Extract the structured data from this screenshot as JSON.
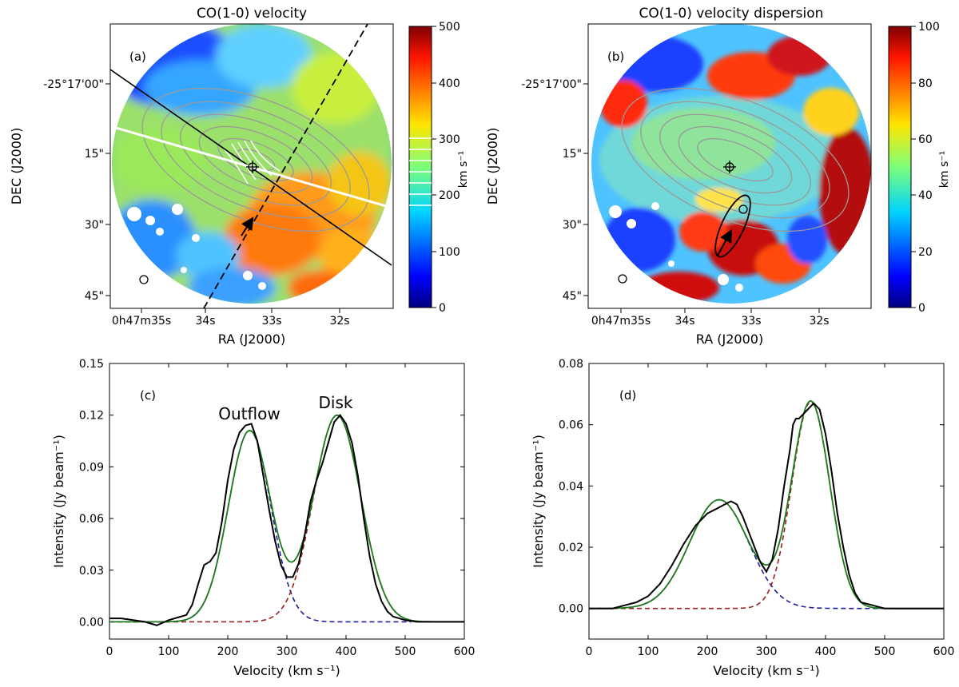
{
  "panels": {
    "a": {
      "title": "CO(1-0) velocity",
      "label": "(a)",
      "xlabel": "RA (J2000)",
      "ylabel": "DEC (J2000)",
      "ra_ticks": [
        "0h47m35s",
        "34s",
        "33s",
        "32s"
      ],
      "dec_ticks": [
        "-25°17'00\"",
        "15\"",
        "30\"",
        "45\""
      ],
      "colorbar": {
        "min": 0,
        "max": 500,
        "ticks": [
          "0",
          "100",
          "200",
          "300",
          "400",
          "500"
        ],
        "unit": "km s⁻¹",
        "colormap": "jet"
      }
    },
    "b": {
      "title": "CO(1-0) velocity dispersion",
      "label": "(b)",
      "xlabel": "RA (J2000)",
      "ylabel": "DEC (J2000)",
      "ra_ticks": [
        "0h47m35s",
        "34s",
        "33s",
        "32s"
      ],
      "dec_ticks": [
        "-25°17'00\"",
        "15\"",
        "30\"",
        "45\""
      ],
      "colorbar": {
        "min": 0,
        "max": 100,
        "ticks": [
          "0",
          "20",
          "40",
          "60",
          "80",
          "100"
        ],
        "unit": "km s⁻¹",
        "colormap": "jet"
      }
    }
  },
  "chart_data": [
    {
      "type": "line",
      "label": "(c)",
      "annotations": [
        "Outflow",
        "Disk"
      ],
      "xlabel": "Velocity (km s⁻¹)",
      "ylabel": "Intensity (Jy beam⁻¹)",
      "xlim": [
        0,
        600
      ],
      "ylim": [
        -0.01,
        0.15
      ],
      "xticks": [
        0,
        100,
        200,
        300,
        400,
        500,
        600
      ],
      "yticks": [
        0.0,
        0.03,
        0.06,
        0.09,
        0.12,
        0.15
      ],
      "ytick_labels": [
        "0.00",
        "0.03",
        "0.06",
        "0.09",
        "0.12",
        "0.15"
      ],
      "gaussians": [
        {
          "amp": 0.111,
          "center": 237,
          "sigma": 36,
          "color": "#1f1f9a",
          "dash": true
        },
        {
          "amp": 0.12,
          "center": 385,
          "sigma": 40,
          "color": "#9a1f1f",
          "dash": true
        }
      ],
      "observed": {
        "x": [
          0,
          20,
          40,
          60,
          80,
          100,
          120,
          130,
          140,
          150,
          160,
          170,
          180,
          190,
          200,
          210,
          220,
          230,
          240,
          250,
          260,
          270,
          280,
          290,
          300,
          310,
          320,
          330,
          340,
          350,
          360,
          370,
          380,
          390,
          400,
          410,
          420,
          430,
          440,
          450,
          460,
          470,
          480,
          490,
          500,
          520,
          540,
          560,
          580,
          600
        ],
        "y": [
          0.002,
          0.002,
          0.001,
          0.0,
          -0.002,
          0.001,
          0.003,
          0.004,
          0.01,
          0.022,
          0.033,
          0.035,
          0.04,
          0.058,
          0.082,
          0.1,
          0.11,
          0.114,
          0.115,
          0.105,
          0.085,
          0.065,
          0.047,
          0.033,
          0.026,
          0.026,
          0.034,
          0.05,
          0.07,
          0.082,
          0.092,
          0.104,
          0.116,
          0.12,
          0.115,
          0.104,
          0.085,
          0.06,
          0.038,
          0.022,
          0.012,
          0.006,
          0.003,
          0.002,
          0.001,
          0.0,
          0.0,
          0.0,
          0.0,
          0.0
        ]
      }
    },
    {
      "type": "line",
      "label": "(d)",
      "xlabel": "Velocity (km s⁻¹)",
      "ylabel": "Intensity (Jy beam⁻¹)",
      "xlim": [
        0,
        600
      ],
      "ylim": [
        -0.01,
        0.08
      ],
      "xticks": [
        0,
        100,
        200,
        300,
        400,
        500,
        600
      ],
      "yticks": [
        0.0,
        0.02,
        0.04,
        0.06,
        0.08
      ],
      "ytick_labels": [
        "0.00",
        "0.02",
        "0.04",
        "0.06",
        "0.08"
      ],
      "gaussians": [
        {
          "amp": 0.0355,
          "center": 220,
          "sigma": 50,
          "color": "#1f1f9a",
          "dash": true
        },
        {
          "amp": 0.0675,
          "center": 375,
          "sigma": 32,
          "color": "#9a1f1f",
          "dash": true
        }
      ],
      "observed": {
        "x": [
          0,
          20,
          40,
          60,
          80,
          100,
          120,
          140,
          160,
          180,
          200,
          220,
          230,
          240,
          250,
          260,
          270,
          280,
          290,
          300,
          310,
          320,
          330,
          340,
          345,
          350,
          355,
          360,
          370,
          380,
          390,
          400,
          410,
          420,
          430,
          440,
          450,
          460,
          480,
          500,
          520,
          540,
          560,
          580,
          600
        ],
        "y": [
          0.0,
          0.0,
          0.0,
          0.001,
          0.002,
          0.004,
          0.008,
          0.014,
          0.021,
          0.027,
          0.031,
          0.033,
          0.034,
          0.035,
          0.034,
          0.03,
          0.025,
          0.02,
          0.015,
          0.012,
          0.016,
          0.026,
          0.04,
          0.052,
          0.06,
          0.062,
          0.062,
          0.063,
          0.065,
          0.067,
          0.065,
          0.057,
          0.045,
          0.031,
          0.02,
          0.011,
          0.005,
          0.002,
          0.001,
          0.0,
          0.0,
          0.0,
          0.0,
          0.0,
          0.0
        ]
      }
    }
  ]
}
